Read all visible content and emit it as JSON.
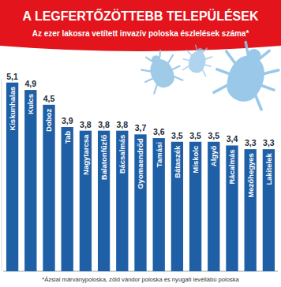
{
  "chart_data": {
    "type": "bar",
    "title": "A LEGFERTŐZÖTTEBB TELEPÜLÉSEK",
    "subtitle": "Az ezer lakosra vetített invazív poloska észlelések száma*",
    "categories": [
      "Kiskunhalas",
      "Kulcs",
      "Doboz",
      "Tab",
      "Nagytarcsa",
      "Balatonfűzfő",
      "Bácsalmás",
      "Gyomaendrőd",
      "Tamási",
      "Bátaszék",
      "Miskolc",
      "Algyő",
      "Rácalmás",
      "Mezőhegyes",
      "Lakitelek"
    ],
    "values": [
      5.1,
      4.9,
      4.5,
      3.9,
      3.8,
      3.8,
      3.8,
      3.7,
      3.6,
      3.5,
      3.5,
      3.5,
      3.4,
      3.3,
      3.3
    ],
    "value_labels": [
      "5,1",
      "4,9",
      "4,5",
      "3,9",
      "3,8",
      "3,8",
      "3,8",
      "3,7",
      "3,6",
      "3,5",
      "3,5",
      "3,5",
      "3,4",
      "3,3",
      "3,3"
    ],
    "color": "#1f5fa6",
    "ylim": [
      0,
      5.2
    ],
    "data_labels": true,
    "tick_labels": "x",
    "annotations": [
      "*Ázsiai márványpoloska, zöld vándor poloska és nyugati levéllábú poloska"
    ]
  }
}
